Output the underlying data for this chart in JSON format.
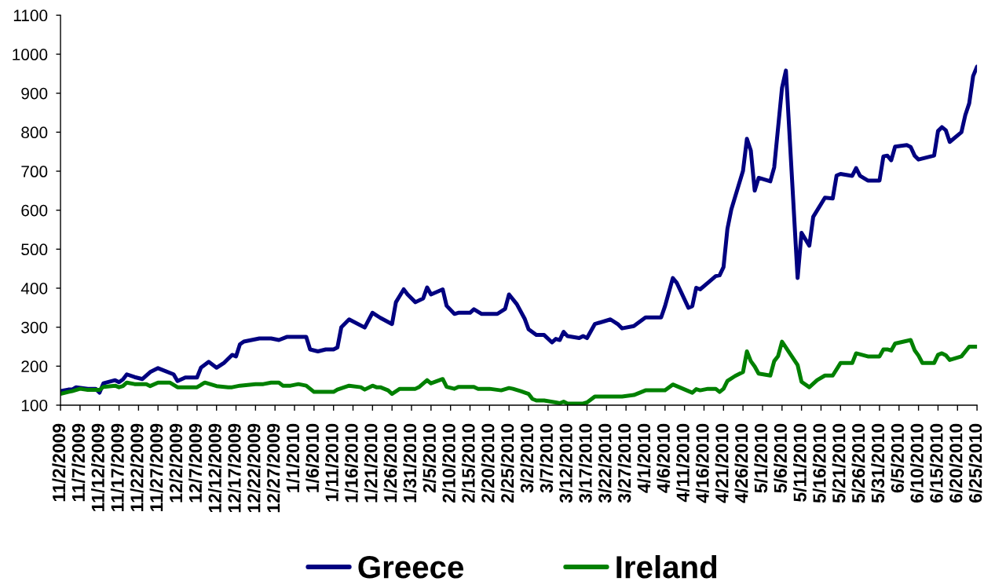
{
  "chart_data": {
    "type": "line",
    "series": [
      {
        "name": "Greece",
        "color": "#000080",
        "x": [
          "2009-11-02",
          "2009-11-04",
          "2009-11-05",
          "2009-11-06",
          "2009-11-09",
          "2009-11-11",
          "2009-11-12",
          "2009-11-13",
          "2009-11-16",
          "2009-11-17",
          "2009-11-18",
          "2009-11-19",
          "2009-11-21",
          "2009-11-23",
          "2009-11-25",
          "2009-11-27",
          "2009-12-01",
          "2009-12-02",
          "2009-12-04",
          "2009-12-07",
          "2009-12-08",
          "2009-12-10",
          "2009-12-12",
          "2009-12-14",
          "2009-12-16",
          "2009-12-17",
          "2009-12-18",
          "2009-12-19",
          "2009-12-21",
          "2009-12-23",
          "2009-12-26",
          "2009-12-28",
          "2009-12-30",
          "2010-01-04",
          "2010-01-05",
          "2010-01-07",
          "2010-01-09",
          "2010-01-11",
          "2010-01-12",
          "2010-01-13",
          "2010-01-15",
          "2010-01-19",
          "2010-01-21",
          "2010-01-23",
          "2010-01-26",
          "2010-01-27",
          "2010-01-29",
          "2010-01-30",
          "2010-02-01",
          "2010-02-03",
          "2010-02-04",
          "2010-02-05",
          "2010-02-08",
          "2010-02-09",
          "2010-02-11",
          "2010-02-12",
          "2010-02-15",
          "2010-02-16",
          "2010-02-18",
          "2010-02-22",
          "2010-02-24",
          "2010-02-25",
          "2010-02-27",
          "2010-03-01",
          "2010-03-02",
          "2010-03-04",
          "2010-03-06",
          "2010-03-08",
          "2010-03-09",
          "2010-03-10",
          "2010-03-11",
          "2010-03-12",
          "2010-03-15",
          "2010-03-16",
          "2010-03-17",
          "2010-03-19",
          "2010-03-23",
          "2010-03-25",
          "2010-03-26",
          "2010-03-29",
          "2010-04-01",
          "2010-04-05",
          "2010-04-06",
          "2010-04-08",
          "2010-04-09",
          "2010-04-12",
          "2010-04-13",
          "2010-04-14",
          "2010-04-15",
          "2010-04-17",
          "2010-04-19",
          "2010-04-20",
          "2010-04-21",
          "2010-04-22",
          "2010-04-23",
          "2010-04-26",
          "2010-04-27",
          "2010-04-28",
          "2010-04-29",
          "2010-04-30",
          "2010-05-03",
          "2010-05-04",
          "2010-05-06",
          "2010-05-07",
          "2010-05-10",
          "2010-05-11",
          "2010-05-13",
          "2010-05-14",
          "2010-05-17",
          "2010-05-19",
          "2010-05-20",
          "2010-05-21",
          "2010-05-24",
          "2010-05-25",
          "2010-05-26",
          "2010-05-28",
          "2010-05-31",
          "2010-06-01",
          "2010-06-02",
          "2010-06-03",
          "2010-06-04",
          "2010-06-07",
          "2010-06-08",
          "2010-06-09",
          "2010-06-10",
          "2010-06-14",
          "2010-06-15",
          "2010-06-16",
          "2010-06-17",
          "2010-06-18",
          "2010-06-21",
          "2010-06-22",
          "2010-06-23",
          "2010-06-24",
          "2010-06-25"
        ],
        "values": [
          136,
          140,
          140,
          146,
          142,
          142,
          132,
          156,
          164,
          159,
          166,
          179,
          172,
          167,
          185,
          195,
          179,
          162,
          171,
          171,
          196,
          211,
          196,
          209,
          229,
          225,
          256,
          263,
          267,
          271,
          271,
          267,
          275,
          275,
          243,
          238,
          243,
          243,
          248,
          300,
          320,
          299,
          337,
          324,
          308,
          364,
          397,
          384,
          364,
          374,
          402,
          384,
          397,
          355,
          334,
          337,
          337,
          346,
          334,
          334,
          347,
          384,
          359,
          322,
          295,
          280,
          280,
          261,
          270,
          267,
          288,
          277,
          272,
          277,
          272,
          308,
          320,
          307,
          297,
          303,
          325,
          325,
          354,
          426,
          414,
          350,
          354,
          401,
          397,
          414,
          431,
          433,
          454,
          552,
          602,
          701,
          783,
          753,
          650,
          683,
          674,
          710,
          914,
          958,
          426,
          542,
          509,
          583,
          632,
          630,
          689,
          693,
          688,
          708,
          688,
          676,
          676,
          738,
          740,
          728,
          763,
          767,
          762,
          740,
          730,
          740,
          803,
          813,
          805,
          775,
          800,
          844,
          874,
          944,
          968
        ]
      },
      {
        "name": "Ireland",
        "color": "#008000",
        "x": [
          "2009-11-02",
          "2009-11-04",
          "2009-11-05",
          "2009-11-07",
          "2009-11-09",
          "2009-11-12",
          "2009-11-13",
          "2009-11-16",
          "2009-11-17",
          "2009-11-18",
          "2009-11-19",
          "2009-11-21",
          "2009-11-24",
          "2009-11-25",
          "2009-11-27",
          "2009-11-30",
          "2009-12-02",
          "2009-12-07",
          "2009-12-09",
          "2009-12-12",
          "2009-12-15",
          "2009-12-16",
          "2009-12-18",
          "2009-12-22",
          "2009-12-24",
          "2009-12-26",
          "2009-12-28",
          "2009-12-29",
          "2009-12-31",
          "2010-01-02",
          "2010-01-04",
          "2010-01-06",
          "2010-01-11",
          "2010-01-12",
          "2010-01-15",
          "2010-01-18",
          "2010-01-19",
          "2010-01-21",
          "2010-01-22",
          "2010-01-23",
          "2010-01-25",
          "2010-01-26",
          "2010-01-28",
          "2010-02-01",
          "2010-02-02",
          "2010-02-04",
          "2010-02-05",
          "2010-02-08",
          "2010-02-09",
          "2010-02-11",
          "2010-02-12",
          "2010-02-16",
          "2010-02-17",
          "2010-02-20",
          "2010-02-23",
          "2010-02-25",
          "2010-02-26",
          "2010-02-28",
          "2010-03-02",
          "2010-03-03",
          "2010-03-04",
          "2010-03-06",
          "2010-03-09",
          "2010-03-10",
          "2010-03-11",
          "2010-03-12",
          "2010-03-16",
          "2010-03-17",
          "2010-03-19",
          "2010-03-26",
          "2010-03-29",
          "2010-04-01",
          "2010-04-06",
          "2010-04-08",
          "2010-04-13",
          "2010-04-14",
          "2010-04-15",
          "2010-04-17",
          "2010-04-19",
          "2010-04-20",
          "2010-04-21",
          "2010-04-22",
          "2010-04-24",
          "2010-04-26",
          "2010-04-27",
          "2010-04-28",
          "2010-04-29",
          "2010-04-30",
          "2010-05-03",
          "2010-05-04",
          "2010-05-05",
          "2010-05-06",
          "2010-05-10",
          "2010-05-11",
          "2010-05-13",
          "2010-05-15",
          "2010-05-17",
          "2010-05-19",
          "2010-05-21",
          "2010-05-24",
          "2010-05-25",
          "2010-05-28",
          "2010-05-31",
          "2010-06-01",
          "2010-06-02",
          "2010-06-03",
          "2010-06-04",
          "2010-06-08",
          "2010-06-09",
          "2010-06-10",
          "2010-06-11",
          "2010-06-14",
          "2010-06-15",
          "2010-06-16",
          "2010-06-17",
          "2010-06-18",
          "2010-06-21",
          "2010-06-23",
          "2010-06-25"
        ],
        "values": [
          129,
          134,
          136,
          142,
          139,
          139,
          147,
          150,
          146,
          149,
          158,
          154,
          154,
          149,
          158,
          158,
          146,
          146,
          158,
          149,
          146,
          146,
          150,
          154,
          154,
          158,
          158,
          150,
          150,
          154,
          150,
          134,
          134,
          140,
          150,
          146,
          140,
          150,
          146,
          146,
          138,
          129,
          142,
          142,
          147,
          164,
          156,
          167,
          147,
          142,
          147,
          147,
          142,
          142,
          138,
          144,
          142,
          136,
          129,
          116,
          112,
          112,
          107,
          105,
          109,
          104,
          104,
          107,
          122,
          122,
          126,
          138,
          138,
          153,
          132,
          141,
          138,
          142,
          142,
          134,
          142,
          162,
          175,
          185,
          238,
          213,
          199,
          181,
          176,
          213,
          226,
          263,
          203,
          160,
          146,
          164,
          176,
          176,
          208,
          208,
          233,
          225,
          225,
          243,
          243,
          240,
          258,
          267,
          241,
          227,
          208,
          208,
          229,
          233,
          228,
          216,
          225,
          250,
          250
        ]
      }
    ],
    "xlim": [
      "2009-11-02",
      "2010-06-25"
    ],
    "xticks": [
      {
        "value": "2009-11-02",
        "label": "11/2/2009"
      },
      {
        "value": "2009-11-07",
        "label": "11/7/2009"
      },
      {
        "value": "2009-11-12",
        "label": "11/12/2009"
      },
      {
        "value": "2009-11-17",
        "label": "11/17/2009"
      },
      {
        "value": "2009-11-22",
        "label": "11/22/2009"
      },
      {
        "value": "2009-11-27",
        "label": "11/27/2009"
      },
      {
        "value": "2009-12-02",
        "label": "12/2/2009"
      },
      {
        "value": "2009-12-07",
        "label": "12/7/2009"
      },
      {
        "value": "2009-12-12",
        "label": "12/12/2009"
      },
      {
        "value": "2009-12-17",
        "label": "12/17/2009"
      },
      {
        "value": "2009-12-22",
        "label": "12/22/2009"
      },
      {
        "value": "2009-12-27",
        "label": "12/27/2009"
      },
      {
        "value": "2010-01-01",
        "label": "1/1/2010"
      },
      {
        "value": "2010-01-06",
        "label": "1/6/2010"
      },
      {
        "value": "2010-01-11",
        "label": "1/11/2010"
      },
      {
        "value": "2010-01-16",
        "label": "1/16/2010"
      },
      {
        "value": "2010-01-21",
        "label": "1/21/2010"
      },
      {
        "value": "2010-01-26",
        "label": "1/26/2010"
      },
      {
        "value": "2010-01-31",
        "label": "1/31/2010"
      },
      {
        "value": "2010-02-05",
        "label": "2/5/2010"
      },
      {
        "value": "2010-02-10",
        "label": "2/10/2010"
      },
      {
        "value": "2010-02-15",
        "label": "2/15/2010"
      },
      {
        "value": "2010-02-20",
        "label": "2/20/2010"
      },
      {
        "value": "2010-02-25",
        "label": "2/25/2010"
      },
      {
        "value": "2010-03-02",
        "label": "3/2/2010"
      },
      {
        "value": "2010-03-07",
        "label": "3/7/2010"
      },
      {
        "value": "2010-03-12",
        "label": "3/12/2010"
      },
      {
        "value": "2010-03-17",
        "label": "3/17/2010"
      },
      {
        "value": "2010-03-22",
        "label": "3/22/2010"
      },
      {
        "value": "2010-03-27",
        "label": "3/27/2010"
      },
      {
        "value": "2010-04-01",
        "label": "4/1/2010"
      },
      {
        "value": "2010-04-06",
        "label": "4/6/2010"
      },
      {
        "value": "2010-04-11",
        "label": "4/11/2010"
      },
      {
        "value": "2010-04-16",
        "label": "4/16/2010"
      },
      {
        "value": "2010-04-21",
        "label": "4/21/2010"
      },
      {
        "value": "2010-04-26",
        "label": "4/26/2010"
      },
      {
        "value": "2010-05-01",
        "label": "5/1/2010"
      },
      {
        "value": "2010-05-06",
        "label": "5/6/2010"
      },
      {
        "value": "2010-05-11",
        "label": "5/11/2010"
      },
      {
        "value": "2010-05-16",
        "label": "5/16/2010"
      },
      {
        "value": "2010-05-21",
        "label": "5/21/2010"
      },
      {
        "value": "2010-05-26",
        "label": "5/26/2010"
      },
      {
        "value": "2010-05-31",
        "label": "5/31/2010"
      },
      {
        "value": "2010-06-05",
        "label": "6/5/2010"
      },
      {
        "value": "2010-06-10",
        "label": "6/10/2010"
      },
      {
        "value": "2010-06-15",
        "label": "6/15/2010"
      },
      {
        "value": "2010-06-20",
        "label": "6/20/2010"
      },
      {
        "value": "2010-06-25",
        "label": "6/25/2010"
      }
    ],
    "ylim": [
      100,
      1100
    ],
    "yticks": [
      100,
      200,
      300,
      400,
      500,
      600,
      700,
      800,
      900,
      1000,
      1100
    ],
    "legend": "bottom",
    "line_style": "solid"
  }
}
